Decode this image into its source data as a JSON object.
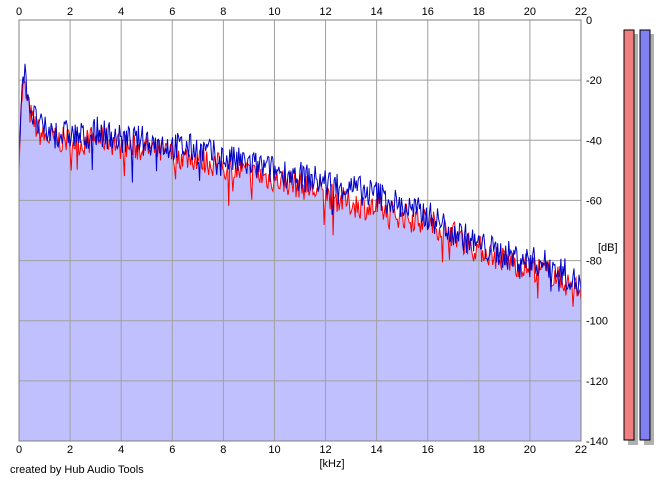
{
  "footer": {
    "credit": "created by Hub Audio Tools"
  },
  "chart_data": {
    "type": "area",
    "xlabel": "[kHz]",
    "ylabel": "[dB]",
    "xlim": [
      0,
      22
    ],
    "ylim": [
      -140,
      0
    ],
    "x_ticks": [
      "0",
      "2",
      "4",
      "6",
      "8",
      "10",
      "12",
      "14",
      "16",
      "18",
      "20",
      "22"
    ],
    "y_ticks": [
      "0",
      "-20",
      "-40",
      "-60",
      "-80",
      "-100",
      "-120",
      "-140"
    ],
    "grid": true,
    "colors": {
      "fill": "#c0c0ff",
      "left_channel": "#ff0000",
      "right_channel": "#0000c8",
      "left_meter": "#f08080",
      "right_meter": "#8080f0"
    },
    "series": [
      {
        "channel": "left",
        "x": [
          0,
          0.1,
          0.2,
          0.35,
          0.5,
          0.75,
          1,
          1.5,
          2,
          2.5,
          3,
          3.5,
          4,
          5,
          6,
          7,
          8,
          9,
          10,
          11,
          12,
          13,
          14,
          15,
          16,
          17,
          18,
          19,
          20,
          21,
          21.5,
          22
        ],
        "y": [
          -46,
          -26,
          -22,
          -28,
          -33,
          -37,
          -39,
          -40,
          -40,
          -41,
          -39,
          -40,
          -42,
          -43,
          -45,
          -46,
          -49,
          -51,
          -53,
          -55,
          -58,
          -61,
          -63,
          -65,
          -67,
          -71,
          -76,
          -80,
          -82,
          -85,
          -88,
          -90
        ]
      },
      {
        "channel": "right",
        "x": [
          0,
          0.1,
          0.2,
          0.35,
          0.5,
          0.75,
          1,
          1.5,
          2,
          2.5,
          3,
          3.5,
          4,
          5,
          6,
          7,
          8,
          9,
          10,
          11,
          12,
          13,
          14,
          15,
          16,
          17,
          18,
          19,
          20,
          21,
          21.5,
          22
        ],
        "y": [
          -44,
          -22,
          -17,
          -24,
          -31,
          -35,
          -37,
          -38,
          -38,
          -39,
          -37,
          -38,
          -40,
          -40,
          -42,
          -43,
          -46,
          -48,
          -50,
          -52,
          -54,
          -56,
          -58,
          -62,
          -65,
          -70,
          -75,
          -78,
          -80,
          -82,
          -85,
          -89
        ]
      }
    ],
    "meters": {
      "left_db": -140,
      "right_db": -140
    }
  }
}
